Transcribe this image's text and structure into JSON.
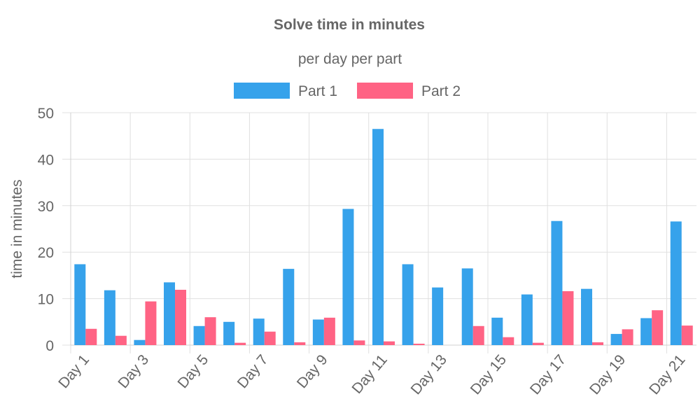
{
  "chart_data": {
    "type": "bar",
    "title": "Solve time in minutes",
    "subtitle": "per day per part",
    "ylabel": "time in minutes",
    "xlabel": "",
    "ylim": [
      0,
      50
    ],
    "yticks": [
      "0",
      "10",
      "20",
      "30",
      "40",
      "50"
    ],
    "categories": [
      "Day 1",
      "Day 2",
      "Day 3",
      "Day 4",
      "Day 5",
      "Day 6",
      "Day 7",
      "Day 8",
      "Day 9",
      "Day 10",
      "Day 11",
      "Day 12",
      "Day 13",
      "Day 14",
      "Day 15",
      "Day 16",
      "Day 17",
      "Day 18",
      "Day 19",
      "Day 20",
      "Day 21"
    ],
    "shown_xticks": [
      "Day 1",
      "Day 3",
      "Day 5",
      "Day 7",
      "Day 9",
      "Day 11",
      "Day 13",
      "Day 15",
      "Day 17",
      "Day 19",
      "Day 21"
    ],
    "grid": true,
    "legend_position": "top",
    "series": [
      {
        "name": "Part 1",
        "color": "#36a2eb",
        "values": [
          17.4,
          11.8,
          1.1,
          13.5,
          4.1,
          5.0,
          5.7,
          16.4,
          5.5,
          29.3,
          46.5,
          17.4,
          12.4,
          16.5,
          5.9,
          10.9,
          26.7,
          12.1,
          2.4,
          5.8,
          26.6
        ]
      },
      {
        "name": "Part 2",
        "color": "#ff6384",
        "values": [
          3.5,
          2.0,
          9.4,
          11.9,
          6.0,
          0.5,
          2.9,
          0.6,
          5.9,
          1.0,
          0.8,
          0.3,
          0.0,
          4.1,
          1.7,
          0.5,
          11.6,
          0.6,
          3.4,
          7.5,
          4.2
        ]
      }
    ]
  }
}
